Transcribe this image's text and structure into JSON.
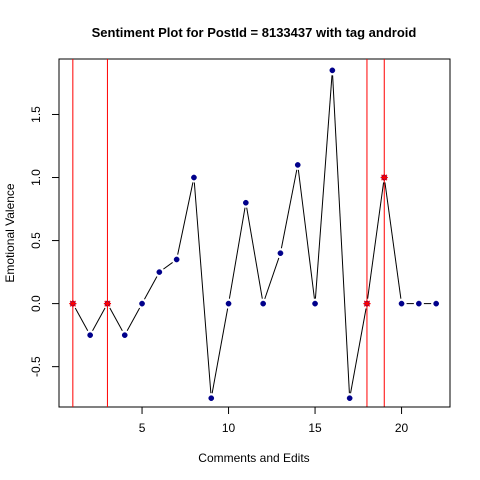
{
  "chart_data": {
    "type": "line",
    "title": "Sentiment Plot for PostId =  8133437  with tag  android",
    "xlabel": "Comments and Edits",
    "ylabel": "Emotional Valence",
    "x": [
      1,
      2,
      3,
      4,
      5,
      6,
      7,
      8,
      9,
      10,
      11,
      12,
      13,
      14,
      15,
      16,
      17,
      18,
      19,
      20,
      21,
      22
    ],
    "series": [
      {
        "values": [
          0,
          -0.25,
          0,
          -0.25,
          0,
          0.25,
          0.35,
          1.0,
          -0.75,
          0,
          0.8,
          0,
          0.4,
          1.1,
          0,
          1.85,
          -0.75,
          0,
          1.0,
          0,
          0,
          0
        ]
      }
    ],
    "highlighted_x": [
      1,
      3,
      18,
      19
    ],
    "vertical_lines_x": [
      1,
      3,
      18,
      19
    ],
    "xlim": [
      0.2,
      22.8
    ],
    "ylim": [
      -0.82,
      1.94
    ],
    "xticks": [
      5,
      10,
      15,
      20
    ],
    "yticks": [
      -0.5,
      0.0,
      0.5,
      1.0,
      1.5
    ],
    "xtick_labels": [
      "5",
      "10",
      "15",
      "20"
    ],
    "ytick_labels": [
      "-0.5",
      "0.0",
      "0.5",
      "1.0",
      "1.5"
    ],
    "grid": false,
    "colors": {
      "line": "#000000",
      "point": "#00008B",
      "highlight": "#FF0000",
      "vline": "#FF0000",
      "frame": "#000000"
    }
  }
}
